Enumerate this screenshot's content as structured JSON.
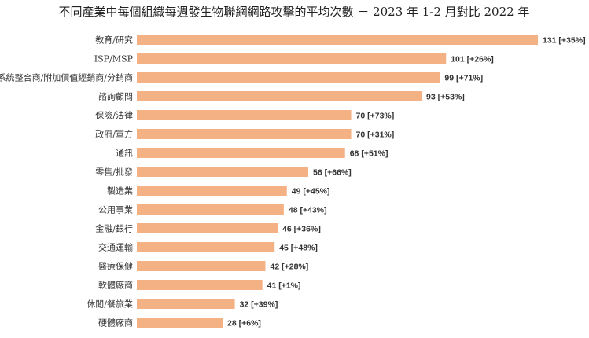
{
  "chart_data": {
    "type": "bar",
    "orientation": "horizontal",
    "title": "不同產業中每個組織每週發生物聯網網路攻擊的平均次數 － 2023 年 1-2 月對比 2022 年",
    "categories": [
      "教育/研究",
      "ISP/MSP",
      "系統整合商/附加價值經銷商/分銷商",
      "諮詢顧問",
      "保險/法律",
      "政府/軍方",
      "通訊",
      "零售/批發",
      "製造業",
      "公用事業",
      "金融/銀行",
      "交通運輸",
      "醫療保健",
      "軟體廠商",
      "休閒/餐旅業",
      "硬體廠商"
    ],
    "values": [
      131,
      101,
      99,
      93,
      70,
      70,
      68,
      56,
      49,
      48,
      46,
      45,
      42,
      41,
      32,
      28
    ],
    "data_labels": [
      "131 [+35%]",
      "101 [+26%]",
      "99 [+71%]",
      "93 [+53%]",
      "70 [+73%]",
      "70 [+31%]",
      "68 [+51%]",
      "56 [+66%]",
      "49 [+45%]",
      "48 [+43%]",
      "46 [+36%]",
      "45 [+48%]",
      "42 [+28%]",
      "41 [+1%]",
      "32 [+39%]",
      "28 [+6%]"
    ],
    "bar_color": "#F4B183",
    "xlim": [
      0,
      131
    ],
    "grid": false,
    "legend": "none"
  }
}
